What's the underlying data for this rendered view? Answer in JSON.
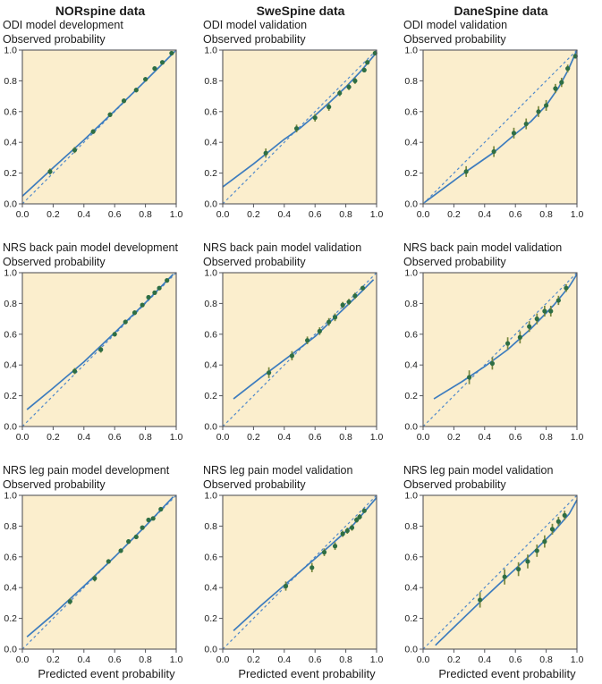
{
  "figure": {
    "y_axis_label": "Observed probability",
    "x_axis_label": "Predicted event probability",
    "colors": {
      "plot_background": "#fbeecd",
      "frame": "#55565a",
      "solid_line": "#3d7cbe",
      "dashed_line": "#5089cb",
      "marker": "#2e6e44",
      "error_bar": "#78873f",
      "text": "#1c1c1c"
    }
  },
  "chart_data": {
    "type": "line",
    "x_range": [
      0,
      1
    ],
    "y_range": [
      0,
      1
    ],
    "ticks": [
      0,
      0.2,
      0.4,
      0.6,
      0.8,
      1.0
    ],
    "columns": [
      "NORspine data",
      "SweSpine data",
      "DaneSpine data"
    ],
    "plots": [
      {
        "column": "NORspine data",
        "subtitle": "ODI model development",
        "points_x": [
          0.18,
          0.34,
          0.46,
          0.57,
          0.66,
          0.74,
          0.8,
          0.86,
          0.91,
          0.97
        ],
        "points_y": [
          0.21,
          0.35,
          0.47,
          0.58,
          0.67,
          0.74,
          0.81,
          0.88,
          0.92,
          0.98
        ],
        "ci_halfwidth": [
          0.02,
          0.02,
          0.015,
          0.015,
          0.015,
          0.015,
          0.015,
          0.012,
          0.012,
          0.008
        ],
        "calibration_curve": [
          [
            0.0,
            0.05
          ],
          [
            0.2,
            0.235
          ],
          [
            0.4,
            0.415
          ],
          [
            0.6,
            0.605
          ],
          [
            0.8,
            0.8
          ],
          [
            0.99,
            0.99
          ]
        ]
      },
      {
        "column": "SweSpine data",
        "subtitle": "ODI model validation",
        "points_x": [
          0.28,
          0.48,
          0.6,
          0.69,
          0.76,
          0.82,
          0.86,
          0.92,
          0.94,
          0.99
        ],
        "points_y": [
          0.33,
          0.49,
          0.56,
          0.63,
          0.72,
          0.76,
          0.8,
          0.87,
          0.92,
          0.98
        ],
        "ci_halfwidth": [
          0.03,
          0.025,
          0.025,
          0.025,
          0.02,
          0.02,
          0.02,
          0.015,
          0.015,
          0.008
        ],
        "calibration_curve": [
          [
            0.0,
            0.11
          ],
          [
            0.2,
            0.26
          ],
          [
            0.4,
            0.42
          ],
          [
            0.5,
            0.49
          ],
          [
            0.6,
            0.575
          ],
          [
            0.7,
            0.665
          ],
          [
            0.8,
            0.76
          ],
          [
            0.9,
            0.865
          ],
          [
            1.0,
            0.985
          ]
        ]
      },
      {
        "column": "DaneSpine data",
        "subtitle": "ODI model validation",
        "points_x": [
          0.28,
          0.46,
          0.59,
          0.67,
          0.75,
          0.8,
          0.86,
          0.9,
          0.94,
          0.99
        ],
        "points_y": [
          0.21,
          0.34,
          0.46,
          0.52,
          0.6,
          0.64,
          0.75,
          0.79,
          0.88,
          0.96
        ],
        "ci_halfwidth": [
          0.035,
          0.035,
          0.035,
          0.035,
          0.035,
          0.035,
          0.03,
          0.03,
          0.025,
          0.015
        ],
        "calibration_curve": [
          [
            0.01,
            0.01
          ],
          [
            0.28,
            0.21
          ],
          [
            0.46,
            0.335
          ],
          [
            0.6,
            0.455
          ],
          [
            0.7,
            0.535
          ],
          [
            0.8,
            0.64
          ],
          [
            0.88,
            0.755
          ],
          [
            0.94,
            0.865
          ],
          [
            1.0,
            1.0
          ]
        ]
      },
      {
        "column": "NORspine data",
        "subtitle": "NRS back pain model development",
        "points_x": [
          0.34,
          0.51,
          0.6,
          0.67,
          0.73,
          0.78,
          0.82,
          0.86,
          0.89,
          0.94
        ],
        "points_y": [
          0.36,
          0.5,
          0.6,
          0.68,
          0.74,
          0.79,
          0.84,
          0.87,
          0.9,
          0.95
        ],
        "ci_halfwidth": [
          0.02,
          0.02,
          0.015,
          0.015,
          0.015,
          0.012,
          0.012,
          0.012,
          0.012,
          0.01
        ],
        "calibration_curve": [
          [
            0.03,
            0.11
          ],
          [
            0.2,
            0.25
          ],
          [
            0.4,
            0.42
          ],
          [
            0.6,
            0.61
          ],
          [
            0.8,
            0.805
          ],
          [
            0.98,
            0.99
          ]
        ]
      },
      {
        "column": "SweSpine data",
        "subtitle": "NRS back pain model validation",
        "points_x": [
          0.3,
          0.45,
          0.55,
          0.63,
          0.69,
          0.73,
          0.78,
          0.82,
          0.86,
          0.91
        ],
        "points_y": [
          0.35,
          0.46,
          0.56,
          0.62,
          0.68,
          0.71,
          0.79,
          0.81,
          0.85,
          0.9
        ],
        "ci_halfwidth": [
          0.035,
          0.03,
          0.025,
          0.025,
          0.025,
          0.025,
          0.02,
          0.02,
          0.02,
          0.015
        ],
        "calibration_curve": [
          [
            0.07,
            0.18
          ],
          [
            0.25,
            0.32
          ],
          [
            0.45,
            0.47
          ],
          [
            0.6,
            0.585
          ],
          [
            0.75,
            0.73
          ],
          [
            0.9,
            0.875
          ],
          [
            0.98,
            0.955
          ]
        ]
      },
      {
        "column": "DaneSpine data",
        "subtitle": "NRS back pain model validation",
        "points_x": [
          0.3,
          0.45,
          0.55,
          0.63,
          0.69,
          0.74,
          0.79,
          0.83,
          0.88,
          0.93
        ],
        "points_y": [
          0.32,
          0.41,
          0.54,
          0.58,
          0.65,
          0.7,
          0.75,
          0.75,
          0.82,
          0.9
        ],
        "ci_halfwidth": [
          0.045,
          0.04,
          0.04,
          0.04,
          0.035,
          0.035,
          0.035,
          0.035,
          0.03,
          0.025
        ],
        "calibration_curve": [
          [
            0.07,
            0.18
          ],
          [
            0.25,
            0.29
          ],
          [
            0.4,
            0.39
          ],
          [
            0.55,
            0.5
          ],
          [
            0.7,
            0.635
          ],
          [
            0.85,
            0.79
          ],
          [
            0.95,
            0.91
          ],
          [
            1.0,
            0.99
          ]
        ]
      },
      {
        "column": "NORspine data",
        "subtitle": "NRS leg pain model development",
        "points_x": [
          0.31,
          0.47,
          0.56,
          0.64,
          0.69,
          0.74,
          0.78,
          0.82,
          0.85,
          0.9
        ],
        "points_y": [
          0.31,
          0.46,
          0.57,
          0.64,
          0.7,
          0.73,
          0.79,
          0.84,
          0.85,
          0.91
        ],
        "ci_halfwidth": [
          0.02,
          0.02,
          0.015,
          0.015,
          0.015,
          0.015,
          0.012,
          0.012,
          0.012,
          0.01
        ],
        "calibration_curve": [
          [
            0.03,
            0.08
          ],
          [
            0.2,
            0.225
          ],
          [
            0.4,
            0.41
          ],
          [
            0.6,
            0.6
          ],
          [
            0.8,
            0.8
          ],
          [
            0.98,
            0.99
          ]
        ]
      },
      {
        "column": "SweSpine data",
        "subtitle": "NRS leg pain model validation",
        "points_x": [
          0.41,
          0.58,
          0.66,
          0.73,
          0.78,
          0.81,
          0.84,
          0.87,
          0.89,
          0.92
        ],
        "points_y": [
          0.41,
          0.53,
          0.63,
          0.67,
          0.75,
          0.77,
          0.79,
          0.84,
          0.86,
          0.9
        ],
        "ci_halfwidth": [
          0.03,
          0.03,
          0.025,
          0.025,
          0.02,
          0.02,
          0.02,
          0.018,
          0.018,
          0.015
        ],
        "calibration_curve": [
          [
            0.07,
            0.12
          ],
          [
            0.25,
            0.285
          ],
          [
            0.4,
            0.415
          ],
          [
            0.55,
            0.545
          ],
          [
            0.7,
            0.675
          ],
          [
            0.85,
            0.81
          ],
          [
            1.0,
            0.985
          ]
        ]
      },
      {
        "column": "DaneSpine data",
        "subtitle": "NRS leg pain model validation",
        "points_x": [
          0.37,
          0.53,
          0.62,
          0.68,
          0.74,
          0.79,
          0.84,
          0.88,
          0.92
        ],
        "points_y": [
          0.32,
          0.47,
          0.52,
          0.57,
          0.64,
          0.7,
          0.78,
          0.83,
          0.87
        ],
        "ci_halfwidth": [
          0.05,
          0.05,
          0.045,
          0.045,
          0.04,
          0.04,
          0.035,
          0.03,
          0.03
        ],
        "calibration_curve": [
          [
            0.08,
            0.025
          ],
          [
            0.25,
            0.19
          ],
          [
            0.4,
            0.335
          ],
          [
            0.55,
            0.475
          ],
          [
            0.7,
            0.615
          ],
          [
            0.85,
            0.765
          ],
          [
            0.95,
            0.88
          ],
          [
            1.0,
            0.97
          ]
        ]
      }
    ]
  }
}
